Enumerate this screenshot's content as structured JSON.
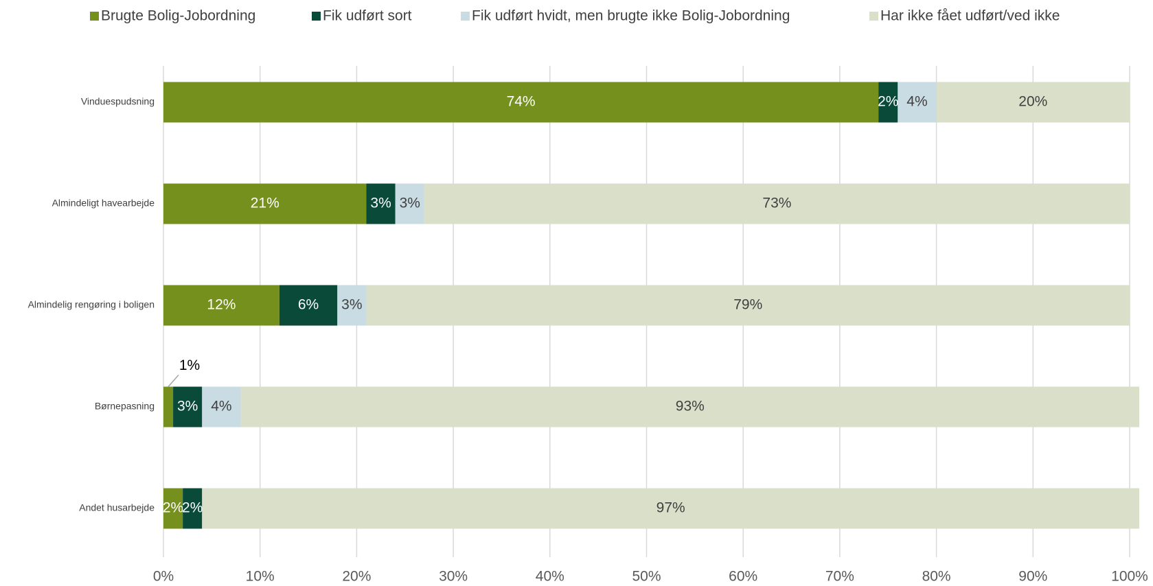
{
  "chart_data": {
    "type": "stacked_bar_horizontal",
    "categories": [
      "Vinduespudsning",
      "Almindeligt havearbejde",
      "Almindelig rengøring i boligen",
      "Børnepasning",
      "Andet husarbejde"
    ],
    "series": [
      {
        "name": "Brugte Bolig-Jobordning",
        "color": "#76901e",
        "values": [
          74,
          21,
          12,
          1,
          2
        ],
        "value_labels": [
          "74%",
          "21%",
          "12%",
          "1%",
          "2%"
        ]
      },
      {
        "name": "Fik udført sort",
        "color": "#0a4a38",
        "values": [
          2,
          3,
          6,
          3,
          2
        ],
        "value_labels": [
          "2%",
          "3%",
          "6%",
          "3%",
          "2%"
        ]
      },
      {
        "name": "Fik udført hvidt, men brugte ikke Bolig-Jobordning",
        "color": "#c9dbe3",
        "values": [
          4,
          3,
          3,
          4,
          null
        ],
        "value_labels": [
          "4%",
          "3%",
          "3%",
          "4%",
          null
        ]
      },
      {
        "name": "Har ikke fået udført/ved ikke",
        "color": "#dadfca",
        "values": [
          20,
          73,
          79,
          93,
          97
        ],
        "value_labels": [
          "20%",
          "73%",
          "79%",
          "93%",
          "97%"
        ]
      }
    ],
    "xlim": [
      0,
      100
    ],
    "xticks": [
      {
        "value": 0,
        "label": "0%"
      },
      {
        "value": 10,
        "label": "10%"
      },
      {
        "value": 20,
        "label": "20%"
      },
      {
        "value": 30,
        "label": "30%"
      },
      {
        "value": 40,
        "label": "40%"
      },
      {
        "value": 50,
        "label": "50%"
      },
      {
        "value": 60,
        "label": "60%"
      },
      {
        "value": 70,
        "label": "70%"
      },
      {
        "value": 80,
        "label": "80%"
      },
      {
        "value": 90,
        "label": "90%"
      },
      {
        "value": 100,
        "label": "100%"
      }
    ],
    "grid": true,
    "legend": "top"
  }
}
